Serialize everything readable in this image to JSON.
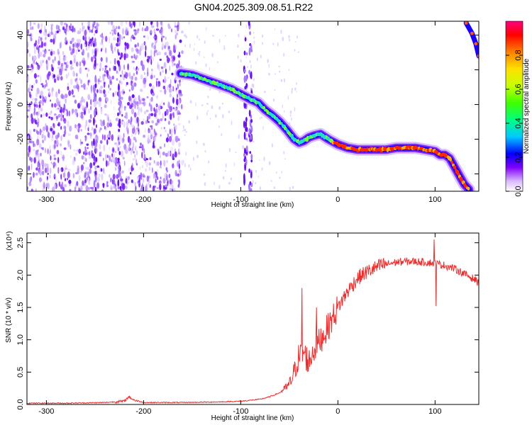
{
  "title": "GN04.2025.309.08.51.R22",
  "colorbar": {
    "label": "Normalized spectral amplitude",
    "ticks": [
      "0.0",
      "0.2",
      "0.4",
      "0.6",
      "0.8"
    ],
    "tick_values": [
      0.0,
      0.2,
      0.4,
      0.6,
      0.8
    ],
    "range": [
      0,
      1
    ]
  },
  "chart_data": [
    {
      "type": "heatmap",
      "title": "GN04.2025.309.08.51.R22",
      "xlabel": "Height of straight line (km)",
      "ylabel": "Frequency (Hz)",
      "xlim": [
        -320,
        145
      ],
      "ylim": [
        -50,
        48
      ],
      "x_ticks": [
        -300,
        -200,
        -100,
        0,
        100
      ],
      "x_tick_labels": [
        "-300",
        "-200",
        "-100",
        "0",
        "100"
      ],
      "y_ticks": [
        -40,
        -20,
        0,
        20,
        40
      ],
      "y_tick_labels": [
        "-40",
        "-20",
        "0",
        "20",
        "40"
      ],
      "ridge": {
        "x": [
          -162,
          -150,
          -140,
          -130,
          -120,
          -110,
          -100,
          -90,
          -82,
          -75,
          -68,
          -60,
          -52,
          -45,
          -40,
          -35,
          -30,
          -25,
          -18,
          -10,
          0,
          10,
          20,
          30,
          40,
          50,
          60,
          70,
          80,
          90,
          100,
          105,
          110,
          115,
          120,
          125,
          130,
          135
        ],
        "y": [
          18,
          17,
          15,
          13,
          11,
          9,
          6,
          3,
          1,
          -3,
          -6,
          -10,
          -15,
          -20,
          -22,
          -21,
          -19,
          -18,
          -17,
          -20,
          -23,
          -25,
          -26,
          -26,
          -26,
          -26,
          -25,
          -25,
          -25,
          -26,
          -27,
          -29,
          -29,
          -31,
          -36,
          -41,
          -46,
          -49
        ],
        "strong_segment_start_km": -5,
        "corner_ridge_x": [
          132,
          138,
          142,
          145
        ],
        "corner_ridge_y": [
          47,
          41,
          35,
          28
        ]
      },
      "noise_region_km": [
        -320,
        -160
      ],
      "vertical_streaks_km": [
        -250,
        -225,
        -95,
        -90
      ]
    },
    {
      "type": "line",
      "xlabel": "Height of straight line (km)",
      "ylabel": "SNR (10 * v/v)",
      "y_multiplier": "(x10⁴)",
      "xlim": [
        -320,
        145
      ],
      "ylim": [
        0,
        2.65
      ],
      "x_ticks": [
        -300,
        -200,
        -100,
        0,
        100
      ],
      "x_tick_labels": [
        "-300",
        "-200",
        "-100",
        "0",
        "100"
      ],
      "y_ticks": [
        0.0,
        0.5,
        1.0,
        1.5,
        2.0,
        2.5
      ],
      "y_tick_labels": [
        "0.0",
        "0.5",
        "1.0",
        "1.5",
        "2.0",
        "2.5"
      ],
      "color": "#e83030",
      "series": [
        {
          "x": [
            -320,
            -280,
            -240,
            -220,
            -215,
            -210,
            -200,
            -160,
            -120,
            -100,
            -80,
            -70,
            -60,
            -50,
            -45,
            -40,
            -35,
            -30,
            -25,
            -20,
            -10,
            0,
            10,
            20,
            30,
            40,
            50,
            60,
            70,
            80,
            90,
            100,
            110,
            120,
            130,
            140,
            145
          ],
          "y": [
            0.02,
            0.02,
            0.03,
            0.05,
            0.12,
            0.07,
            0.03,
            0.03,
            0.04,
            0.05,
            0.08,
            0.12,
            0.18,
            0.3,
            0.5,
            0.75,
            0.8,
            0.65,
            0.85,
            0.95,
            1.2,
            1.5,
            1.75,
            1.95,
            2.05,
            2.12,
            2.17,
            2.2,
            2.21,
            2.21,
            2.2,
            2.18,
            2.15,
            2.1,
            2.02,
            1.94,
            1.88
          ],
          "spikes": [
            {
              "x": -37,
              "y": 1.8
            },
            {
              "x": -22,
              "y": 1.5
            },
            {
              "x": 99,
              "y": 2.55
            },
            {
              "x": 101,
              "y": 1.52
            }
          ]
        }
      ]
    }
  ]
}
